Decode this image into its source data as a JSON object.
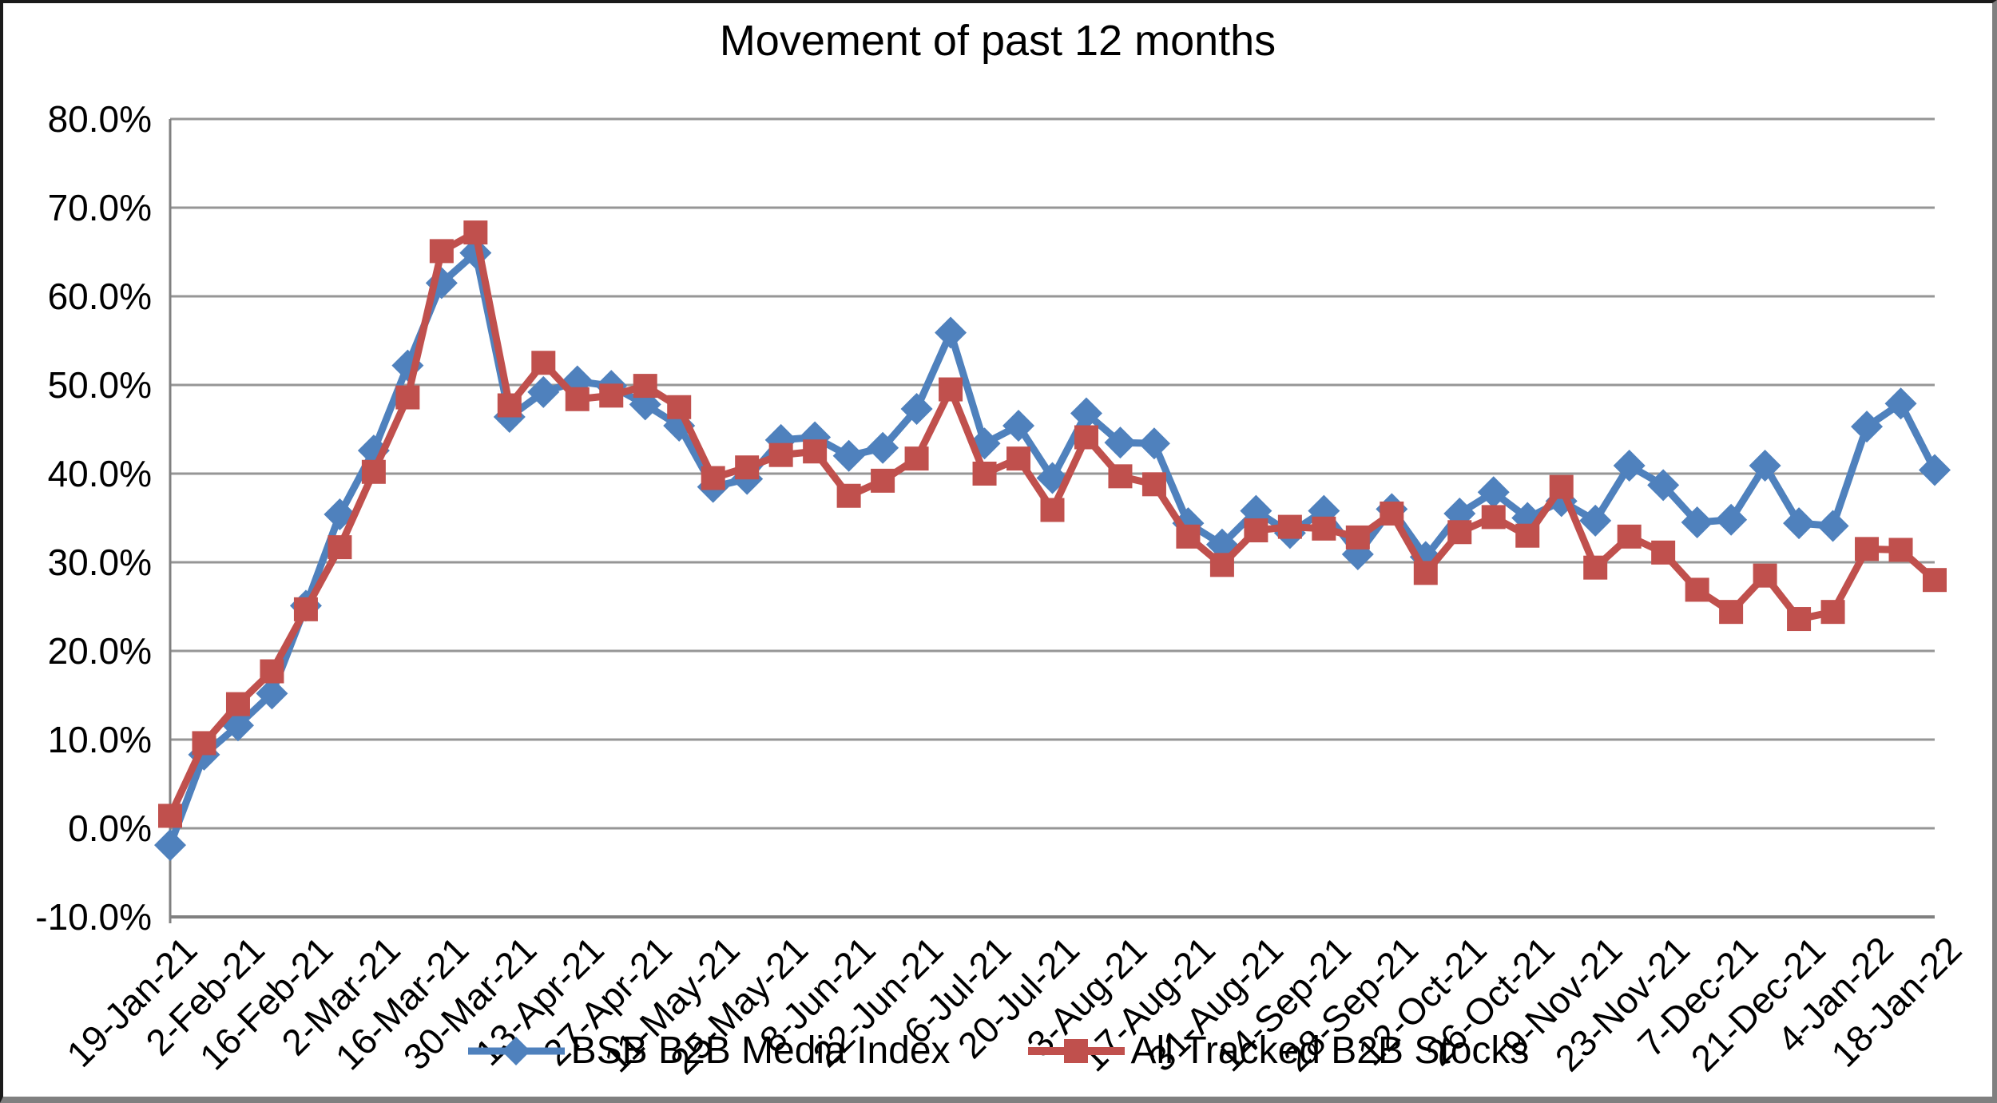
{
  "chart_data": {
    "type": "line",
    "title": "Movement of past 12 months",
    "x_tick_labels": [
      "19-Jan-21",
      "2-Feb-21",
      "16-Feb-21",
      "2-Mar-21",
      "16-Mar-21",
      "30-Mar-21",
      "13-Apr-21",
      "27-Apr-21",
      "11-May-21",
      "25-May-21",
      "8-Jun-21",
      "22-Jun-21",
      "6-Jul-21",
      "20-Jul-21",
      "3-Aug-21",
      "17-Aug-21",
      "31-Aug-21",
      "14-Sep-21",
      "28-Sep-21",
      "12-Oct-21",
      "26-Oct-21",
      "9-Nov-21",
      "23-Nov-21",
      "7-Dec-21",
      "21-Dec-21",
      "4-Jan-22",
      "18-Jan-22"
    ],
    "weeks_per_tick": 2,
    "n_points": 53,
    "y_axis": {
      "min": -10,
      "max": 80,
      "step": 10,
      "tick_labels": [
        "80.0%",
        "70.0%",
        "60.0%",
        "50.0%",
        "40.0%",
        "30.0%",
        "20.0%",
        "10.0%",
        "0.0%",
        "-10.0%"
      ]
    },
    "grid": true,
    "legend_position": "bottom",
    "colors": {
      "grid": "#969696",
      "axis": "#808080",
      "text": "#000000"
    },
    "series": [
      {
        "name": "BSB B2B Media Index",
        "color": "#4F81BD",
        "marker": "diamond",
        "values": [
          -1.9,
          8.3,
          11.6,
          15.2,
          25.1,
          35.4,
          42.6,
          52.2,
          61.5,
          64.9,
          46.4,
          49.2,
          50.4,
          49.9,
          47.8,
          45.4,
          38.5,
          39.4,
          43.8,
          44.1,
          42.0,
          42.9,
          47.3,
          55.9,
          43.4,
          45.4,
          39.5,
          46.8,
          43.5,
          43.4,
          34.4,
          32.0,
          35.8,
          33.3,
          35.8,
          30.9,
          36.0,
          30.6,
          35.5,
          37.9,
          35.0,
          36.9,
          34.7,
          40.9,
          38.7,
          34.5,
          34.8,
          40.9,
          34.4,
          34.1,
          45.3,
          47.9,
          40.4
        ]
      },
      {
        "name": "All Tracked B2B Stocks",
        "color": "#C0504D",
        "marker": "square",
        "values": [
          1.4,
          9.6,
          14.0,
          17.7,
          24.7,
          31.7,
          40.2,
          48.6,
          65.1,
          67.2,
          47.7,
          52.5,
          48.4,
          48.8,
          49.9,
          47.5,
          39.5,
          40.7,
          42.1,
          42.5,
          37.5,
          39.2,
          41.7,
          49.5,
          40.0,
          41.7,
          35.9,
          44.1,
          39.7,
          38.8,
          32.9,
          29.7,
          33.6,
          34.0,
          33.8,
          32.8,
          35.5,
          28.8,
          33.4,
          35.1,
          33.0,
          38.5,
          29.4,
          32.9,
          31.1,
          26.9,
          24.4,
          28.5,
          23.6,
          24.4,
          31.5,
          31.4,
          28.0
        ]
      }
    ]
  }
}
